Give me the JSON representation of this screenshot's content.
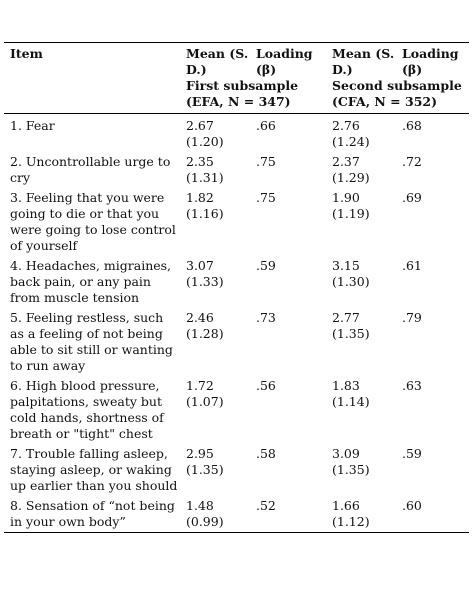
{
  "table": {
    "headers": {
      "item": "Item",
      "mean1": "Mean (S. D.)",
      "loading1": "Loading (β)",
      "mean2": "Mean (S. D.)",
      "loading2": "Loading (β)",
      "subsample1": "First subsample (EFA, N = 347)",
      "subsample2": "Second subsample (CFA, N = 352)"
    },
    "rows": [
      {
        "item": "1. Fear",
        "mean1": "2.67 (1.20)",
        "loading1": ".66",
        "mean2": "2.76 (1.24)",
        "loading2": ".68"
      },
      {
        "item": "2. Uncontrollable urge to cry",
        "mean1": "2.35 (1.31)",
        "loading1": ".75",
        "mean2": "2.37 (1.29)",
        "loading2": ".72"
      },
      {
        "item": "3. Feeling that you were going to die or that you were going to lose control of yourself",
        "mean1": "1.82 (1.16)",
        "loading1": ".75",
        "mean2": "1.90 (1.19)",
        "loading2": ".69"
      },
      {
        "item": "4. Headaches, migraines, back pain, or any pain from muscle tension",
        "mean1": "3.07 (1.33)",
        "loading1": ".59",
        "mean2": "3.15 (1.30)",
        "loading2": ".61"
      },
      {
        "item": "5. Feeling restless, such as a feeling of not being able to sit still or wanting to run away",
        "mean1": "2.46 (1.28)",
        "loading1": ".73",
        "mean2": "2.77 (1.35)",
        "loading2": ".79"
      },
      {
        "item": "6. High blood pressure, palpitations, sweaty but cold hands, shortness of breath or \"tight\" chest",
        "mean1": "1.72 (1.07)",
        "loading1": ".56",
        "mean2": "1.83 (1.14)",
        "loading2": ".63"
      },
      {
        "item": "7. Trouble falling asleep, staying asleep, or waking up earlier than you should",
        "mean1": "2.95 (1.35)",
        "loading1": ".58",
        "mean2": "3.09 (1.35)",
        "loading2": ".59"
      },
      {
        "item": "8. Sensation of “not being in your own body”",
        "mean1": "1.48 (0.99)",
        "loading1": ".52",
        "mean2": "1.66 (1.12)",
        "loading2": ".60"
      }
    ]
  }
}
